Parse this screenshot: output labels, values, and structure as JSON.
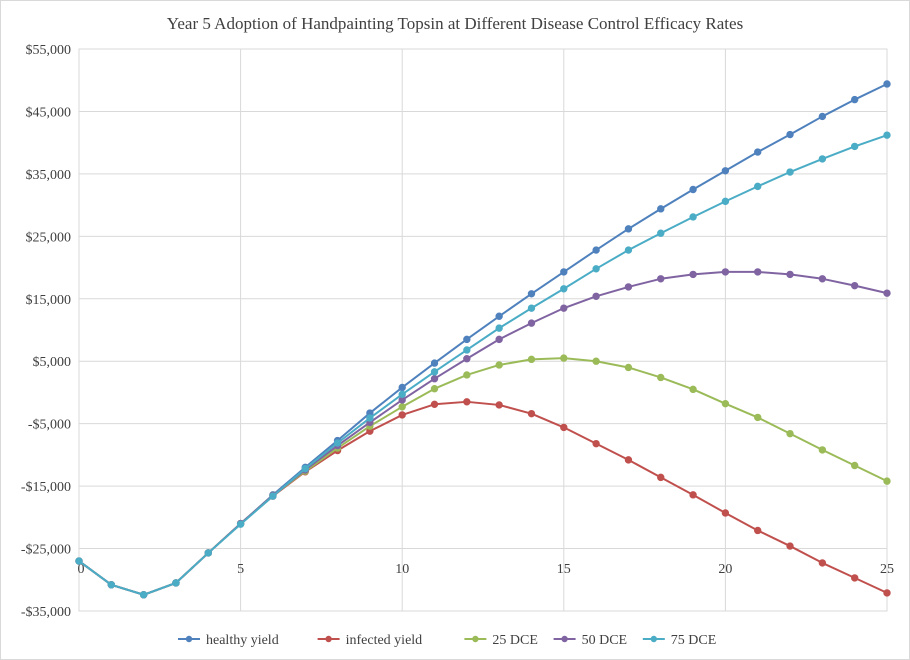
{
  "chart_data": {
    "type": "line",
    "title": "Year 5 Adoption of Handpainting  Topsin at Different  Disease  Control  Efficacy  Rates",
    "xlabel": "",
    "ylabel": "",
    "x": [
      0,
      1,
      2,
      3,
      4,
      5,
      6,
      7,
      8,
      9,
      10,
      11,
      12,
      13,
      14,
      15,
      16,
      17,
      18,
      19,
      20,
      21,
      22,
      23,
      24,
      25
    ],
    "xlim": [
      0,
      25
    ],
    "ylim": [
      -35000,
      55000
    ],
    "x_ticks": [
      0,
      5,
      10,
      15,
      20,
      25
    ],
    "x_tick_labels": [
      "0",
      "5",
      "10",
      "15",
      "20",
      "25"
    ],
    "y_ticks": [
      -35000,
      -25000,
      -15000,
      -5000,
      5000,
      15000,
      25000,
      35000,
      45000,
      55000
    ],
    "y_tick_labels": [
      "-$35,000",
      "-$25,000",
      "-$15,000",
      "-$5,000",
      "$5,000",
      "$15,000",
      "$25,000",
      "$35,000",
      "$45,000",
      "$55,000"
    ],
    "grid": true,
    "legend_position": "bottom",
    "series": [
      {
        "name": "healthy yield",
        "color": "#4f81bd",
        "values": [
          -27000,
          -30800,
          -32400,
          -30500,
          -25700,
          -21000,
          -16400,
          -12000,
          -7700,
          -3300,
          800,
          4700,
          8500,
          12200,
          15800,
          19300,
          22800,
          26200,
          29400,
          32500,
          35500,
          38500,
          41300,
          44200,
          46900,
          49400
        ]
      },
      {
        "name": "infected yield",
        "color": "#c0504d",
        "values": [
          -27000,
          -30800,
          -32400,
          -30500,
          -25700,
          -21000,
          -16600,
          -12700,
          -9300,
          -6200,
          -3600,
          -1900,
          -1500,
          -2000,
          -3400,
          -5600,
          -8200,
          -10800,
          -13600,
          -16400,
          -19300,
          -22100,
          -24600,
          -27300,
          -29700,
          -32100
        ]
      },
      {
        "name": "25 DCE",
        "color": "#9bbb59",
        "values": [
          -27000,
          -30800,
          -32400,
          -30500,
          -25700,
          -21000,
          -16500,
          -12600,
          -8900,
          -5400,
          -2300,
          600,
          2800,
          4400,
          5300,
          5500,
          5000,
          4000,
          2400,
          500,
          -1800,
          -4000,
          -6600,
          -9200,
          -11700,
          -14200
        ]
      },
      {
        "name": "50 DCE",
        "color": "#8064a2",
        "values": [
          -27000,
          -30800,
          -32400,
          -30500,
          -25700,
          -21000,
          -16500,
          -12400,
          -8500,
          -4800,
          -1200,
          2200,
          5400,
          8500,
          11100,
          13500,
          15400,
          16900,
          18200,
          18900,
          19300,
          19300,
          18900,
          18200,
          17100,
          15900
        ]
      },
      {
        "name": "75 DCE",
        "color": "#4bacc6",
        "values": [
          -27000,
          -30800,
          -32400,
          -30500,
          -25700,
          -21100,
          -16600,
          -12200,
          -8100,
          -4100,
          -300,
          3300,
          6800,
          10300,
          13500,
          16600,
          19800,
          22800,
          25500,
          28100,
          30600,
          33000,
          35300,
          37400,
          39400,
          41200
        ]
      }
    ]
  }
}
